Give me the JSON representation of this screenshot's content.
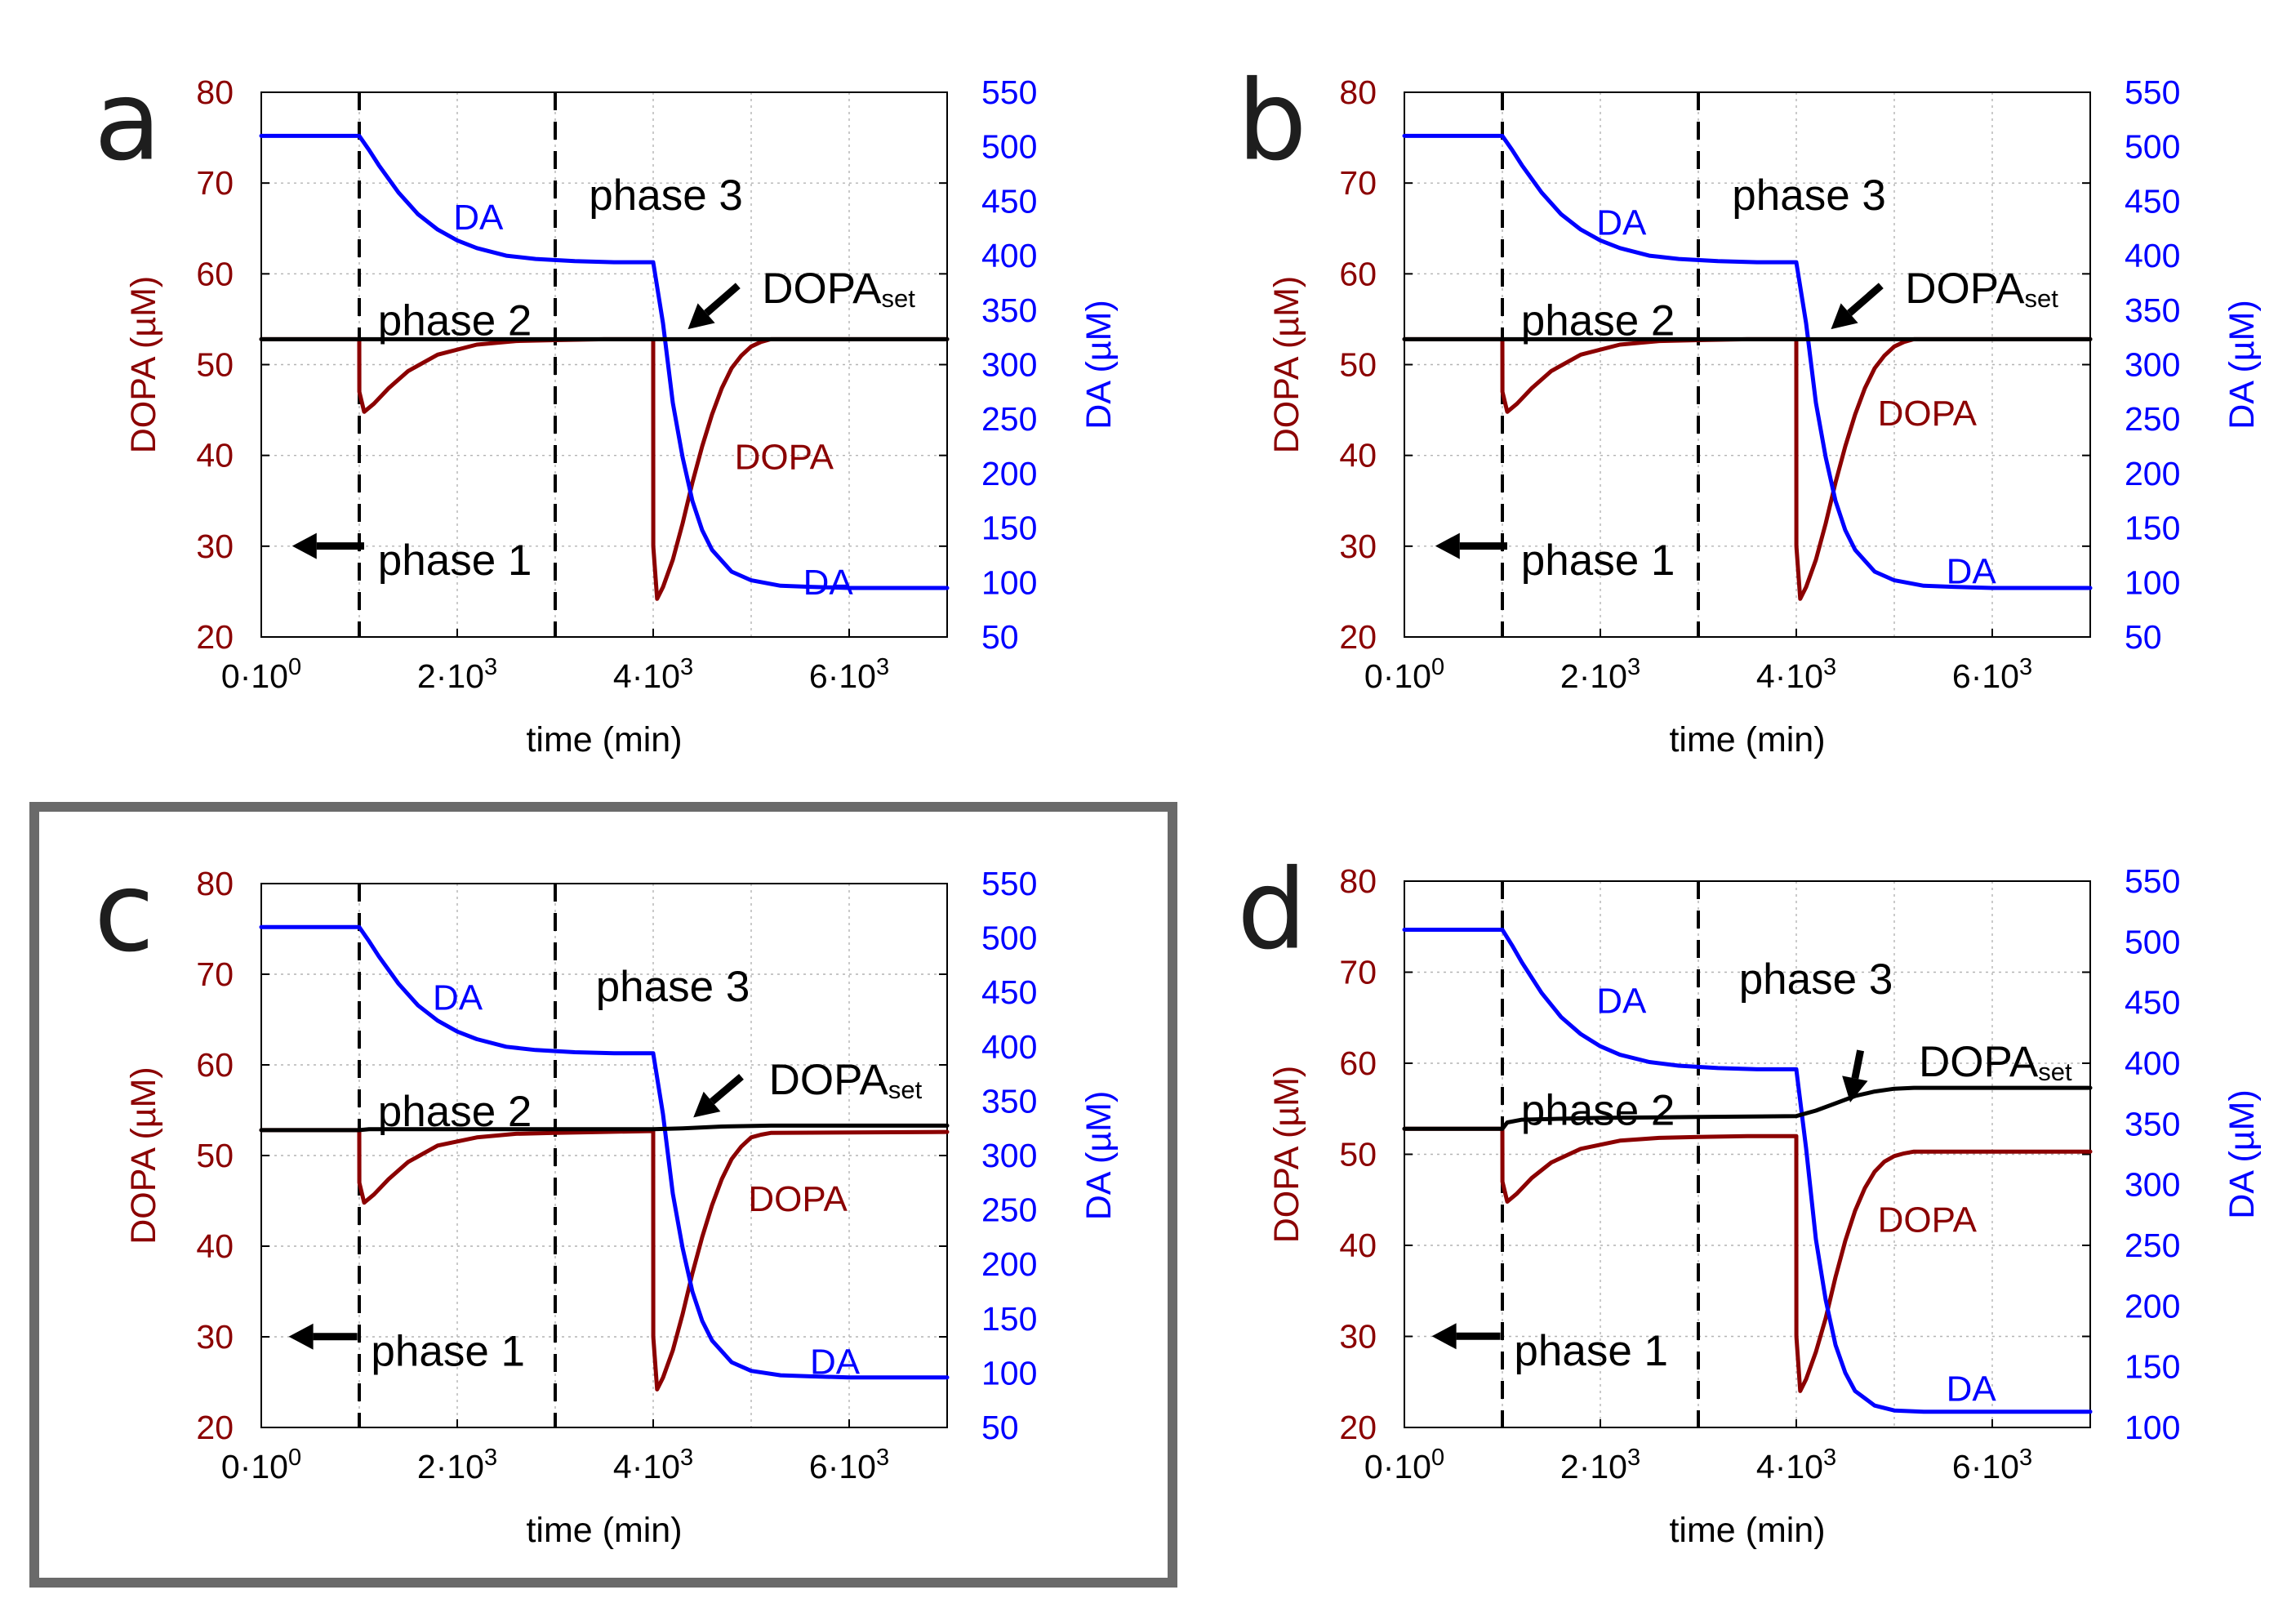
{
  "figure": {
    "colors": {
      "dopa": "#8B0000",
      "da": "#0000FF",
      "dopa_set": "#000000",
      "highlight_box": "#6a6a6a"
    },
    "highlighted_panel": "c"
  },
  "chart_data": [
    {
      "panel": "a",
      "type": "line",
      "xlabel": "time (min)",
      "ylabel_left": "DOPA (µM)",
      "ylabel_right": "DA (µM)",
      "xlim": [
        0,
        7000
      ],
      "xticks": [
        0,
        2000,
        4000,
        6000
      ],
      "xtick_labels": [
        {
          "base": "0·10",
          "exp": "0"
        },
        {
          "base": "2·10",
          "exp": "3"
        },
        {
          "base": "4·10",
          "exp": "3"
        },
        {
          "base": "6·10",
          "exp": "3"
        }
      ],
      "ylim_left": [
        20,
        80
      ],
      "yticks_left": [
        20,
        30,
        40,
        50,
        60,
        70,
        80
      ],
      "ylim_right": [
        50,
        550
      ],
      "yticks_right": [
        50,
        100,
        150,
        200,
        250,
        300,
        350,
        400,
        450,
        500,
        550
      ],
      "phase_boundaries": [
        1000,
        3000
      ],
      "phase_labels": {
        "phase1": "phase 1",
        "phase2": "phase 2",
        "phase3": "phase 3"
      },
      "dopa_set_label": {
        "base": "DOPA",
        "sub": "set"
      },
      "curve_labels": {
        "da_upper": "DA",
        "da_lower": "DA",
        "dopa": "DOPA"
      },
      "series": [
        {
          "name": "DOPA",
          "axis": "left",
          "x": [
            0,
            1000,
            1001,
            1050,
            1150,
            1300,
            1500,
            1800,
            2200,
            2600,
            3000,
            3500,
            4000,
            4001,
            4040,
            4100,
            4200,
            4300,
            4400,
            4500,
            4600,
            4700,
            4800,
            4900,
            5000,
            5100,
            5200,
            7000
          ],
          "y": [
            52.8,
            52.8,
            47,
            44.8,
            45.7,
            47.4,
            49.3,
            51.1,
            52.2,
            52.6,
            52.7,
            52.8,
            52.8,
            30,
            24.2,
            25.5,
            28.5,
            32.5,
            37,
            41,
            44.5,
            47.4,
            49.6,
            51,
            52,
            52.5,
            52.8,
            52.8
          ]
        },
        {
          "name": "DA",
          "axis": "right",
          "x": [
            0,
            1000,
            1100,
            1200,
            1400,
            1600,
            1800,
            2000,
            2200,
            2500,
            2800,
            3200,
            3600,
            4000,
            4100,
            4200,
            4300,
            4400,
            4500,
            4600,
            4800,
            5000,
            5300,
            5600,
            6000,
            7000
          ],
          "y": [
            510,
            510,
            497,
            483,
            458,
            438,
            424,
            414,
            407,
            400,
            397,
            395,
            394,
            394,
            338,
            265,
            215,
            175,
            148,
            130,
            110,
            102,
            97,
            96,
            95,
            95
          ]
        },
        {
          "name": "DOPA_set",
          "axis": "left",
          "x": [
            0,
            7000
          ],
          "y": [
            52.8,
            52.8
          ]
        }
      ]
    },
    {
      "panel": "b",
      "type": "line",
      "xlabel": "time (min)",
      "ylabel_left": "DOPA (µM)",
      "ylabel_right": "DA (µM)",
      "xlim": [
        0,
        7000
      ],
      "xticks": [
        0,
        2000,
        4000,
        6000
      ],
      "xtick_labels": [
        {
          "base": "0·10",
          "exp": "0"
        },
        {
          "base": "2·10",
          "exp": "3"
        },
        {
          "base": "4·10",
          "exp": "3"
        },
        {
          "base": "6·10",
          "exp": "3"
        }
      ],
      "ylim_left": [
        20,
        80
      ],
      "yticks_left": [
        20,
        30,
        40,
        50,
        60,
        70,
        80
      ],
      "ylim_right": [
        50,
        550
      ],
      "yticks_right": [
        50,
        100,
        150,
        200,
        250,
        300,
        350,
        400,
        450,
        500,
        550
      ],
      "phase_boundaries": [
        1000,
        3000
      ],
      "phase_labels": {
        "phase1": "phase 1",
        "phase2": "phase 2",
        "phase3": "phase 3"
      },
      "dopa_set_label": {
        "base": "DOPA",
        "sub": "set"
      },
      "curve_labels": {
        "da_upper": "DA",
        "da_lower": "DA",
        "dopa": "DOPA"
      },
      "series": [
        {
          "name": "DOPA",
          "axis": "left",
          "x": [
            0,
            1000,
            1001,
            1050,
            1150,
            1300,
            1500,
            1800,
            2200,
            2600,
            3000,
            3500,
            4000,
            4001,
            4040,
            4100,
            4200,
            4300,
            4400,
            4500,
            4600,
            4700,
            4800,
            4900,
            5000,
            5100,
            5200,
            7000
          ],
          "y": [
            52.8,
            52.8,
            47,
            44.8,
            45.7,
            47.4,
            49.3,
            51.1,
            52.2,
            52.6,
            52.7,
            52.8,
            52.8,
            30,
            24.2,
            25.5,
            28.5,
            32.5,
            37,
            41,
            44.5,
            47.4,
            49.6,
            51,
            52,
            52.5,
            52.8,
            52.8
          ]
        },
        {
          "name": "DA",
          "axis": "right",
          "x": [
            0,
            1000,
            1100,
            1200,
            1400,
            1600,
            1800,
            2000,
            2200,
            2500,
            2800,
            3200,
            3600,
            4000,
            4100,
            4200,
            4300,
            4400,
            4500,
            4600,
            4800,
            5000,
            5300,
            5600,
            6000,
            7000
          ],
          "y": [
            510,
            510,
            497,
            483,
            458,
            438,
            424,
            414,
            407,
            400,
            397,
            395,
            394,
            394,
            338,
            265,
            215,
            175,
            148,
            130,
            110,
            102,
            97,
            96,
            95,
            95
          ]
        },
        {
          "name": "DOPA_set",
          "axis": "left",
          "x": [
            0,
            7000
          ],
          "y": [
            52.8,
            52.8
          ]
        }
      ]
    },
    {
      "panel": "c",
      "type": "line",
      "xlabel": "time (min)",
      "ylabel_left": "DOPA (µM)",
      "ylabel_right": "DA (µM)",
      "xlim": [
        0,
        7000
      ],
      "xticks": [
        0,
        2000,
        4000,
        6000
      ],
      "xtick_labels": [
        {
          "base": "0·10",
          "exp": "0"
        },
        {
          "base": "2·10",
          "exp": "3"
        },
        {
          "base": "4·10",
          "exp": "3"
        },
        {
          "base": "6·10",
          "exp": "3"
        }
      ],
      "ylim_left": [
        20,
        80
      ],
      "yticks_left": [
        20,
        30,
        40,
        50,
        60,
        70,
        80
      ],
      "ylim_right": [
        50,
        550
      ],
      "yticks_right": [
        50,
        100,
        150,
        200,
        250,
        300,
        350,
        400,
        450,
        500,
        550
      ],
      "phase_boundaries": [
        1000,
        3000
      ],
      "phase_labels": {
        "phase1": "phase 1",
        "phase2": "phase 2",
        "phase3": "phase 3"
      },
      "dopa_set_label": {
        "base": "DOPA",
        "sub": "set"
      },
      "curve_labels": {
        "da_upper": "DA",
        "da_lower": "DA",
        "dopa": "DOPA"
      },
      "series": [
        {
          "name": "DOPA",
          "axis": "left",
          "x": [
            0,
            1000,
            1001,
            1050,
            1150,
            1300,
            1500,
            1800,
            2200,
            2600,
            3000,
            3500,
            4000,
            4001,
            4040,
            4100,
            4200,
            4300,
            4400,
            4500,
            4600,
            4700,
            4800,
            4900,
            5000,
            5100,
            5200,
            7000
          ],
          "y": [
            52.8,
            52.8,
            47,
            44.8,
            45.7,
            47.4,
            49.3,
            51.1,
            52,
            52.4,
            52.5,
            52.6,
            52.7,
            30,
            24.2,
            25.5,
            28.5,
            32.5,
            37,
            41,
            44.5,
            47.4,
            49.6,
            51,
            52,
            52.3,
            52.5,
            52.6
          ]
        },
        {
          "name": "DA",
          "axis": "right",
          "x": [
            0,
            1000,
            1100,
            1200,
            1400,
            1600,
            1800,
            2000,
            2200,
            2500,
            2800,
            3200,
            3600,
            4000,
            4100,
            4200,
            4300,
            4400,
            4500,
            4600,
            4800,
            5000,
            5300,
            5600,
            6000,
            7000
          ],
          "y": [
            510,
            510,
            497,
            483,
            458,
            438,
            424,
            414,
            407,
            400,
            397,
            395,
            394,
            394,
            338,
            265,
            215,
            175,
            148,
            130,
            110,
            102,
            98,
            97,
            96,
            96
          ]
        },
        {
          "name": "DOPA_set",
          "axis": "left",
          "x": [
            0,
            1000,
            1100,
            2000,
            3000,
            4000,
            4300,
            4700,
            5200,
            7000
          ],
          "y": [
            52.8,
            52.8,
            52.9,
            52.9,
            52.9,
            52.9,
            53.0,
            53.2,
            53.3,
            53.3
          ]
        }
      ]
    },
    {
      "panel": "d",
      "type": "line",
      "xlabel": "time (min)",
      "ylabel_left": "DOPA (µM)",
      "ylabel_right": "DA (µM)",
      "xlim": [
        0,
        7000
      ],
      "xticks": [
        0,
        2000,
        4000,
        6000
      ],
      "xtick_labels": [
        {
          "base": "0·10",
          "exp": "0"
        },
        {
          "base": "2·10",
          "exp": "3"
        },
        {
          "base": "4·10",
          "exp": "3"
        },
        {
          "base": "6·10",
          "exp": "3"
        }
      ],
      "ylim_left": [
        20,
        80
      ],
      "yticks_left": [
        20,
        30,
        40,
        50,
        60,
        70,
        80
      ],
      "ylim_right": [
        100,
        550
      ],
      "yticks_right": [
        100,
        150,
        200,
        250,
        300,
        350,
        400,
        450,
        500,
        550
      ],
      "phase_boundaries": [
        1000,
        3000
      ],
      "phase_labels": {
        "phase1": "phase 1",
        "phase2": "phase 2",
        "phase3": "phase 3"
      },
      "dopa_set_label": {
        "base": "DOPA",
        "sub": "set"
      },
      "curve_labels": {
        "da_upper": "DA",
        "da_lower": "DA",
        "dopa": "DOPA"
      },
      "series": [
        {
          "name": "DOPA",
          "axis": "left",
          "x": [
            0,
            1000,
            1001,
            1050,
            1150,
            1300,
            1500,
            1800,
            2200,
            2600,
            3000,
            3500,
            4000,
            4001,
            4040,
            4100,
            4200,
            4300,
            4400,
            4500,
            4600,
            4700,
            4800,
            4900,
            5000,
            5100,
            5200,
            7000
          ],
          "y": [
            52.8,
            52.8,
            47,
            44.8,
            45.7,
            47.4,
            49.1,
            50.6,
            51.5,
            51.8,
            51.9,
            52,
            52,
            30,
            24,
            25.3,
            28.3,
            32,
            36.5,
            40.5,
            43.8,
            46.3,
            48.1,
            49.2,
            49.8,
            50.1,
            50.3,
            50.3
          ]
        },
        {
          "name": "DA",
          "axis": "right",
          "x": [
            0,
            1000,
            1100,
            1200,
            1400,
            1600,
            1800,
            2000,
            2200,
            2500,
            2800,
            3200,
            3600,
            4000,
            4100,
            4200,
            4300,
            4400,
            4500,
            4600,
            4800,
            5000,
            5300,
            5600,
            6000,
            7000
          ],
          "y": [
            510,
            510,
            497,
            483,
            458,
            438,
            424,
            414,
            407,
            401,
            398,
            396,
            395,
            395,
            330,
            255,
            205,
            168,
            145,
            130,
            118,
            114,
            113,
            113,
            113,
            113
          ]
        },
        {
          "name": "DOPA_set",
          "axis": "left",
          "x": [
            0,
            1000,
            1050,
            1200,
            2000,
            3000,
            4000,
            4200,
            4400,
            4600,
            4800,
            5000,
            5200,
            7000
          ],
          "y": [
            52.8,
            52.8,
            53.5,
            53.8,
            54,
            54.1,
            54.2,
            54.8,
            55.6,
            56.4,
            56.9,
            57.2,
            57.3,
            57.3
          ]
        }
      ]
    }
  ]
}
